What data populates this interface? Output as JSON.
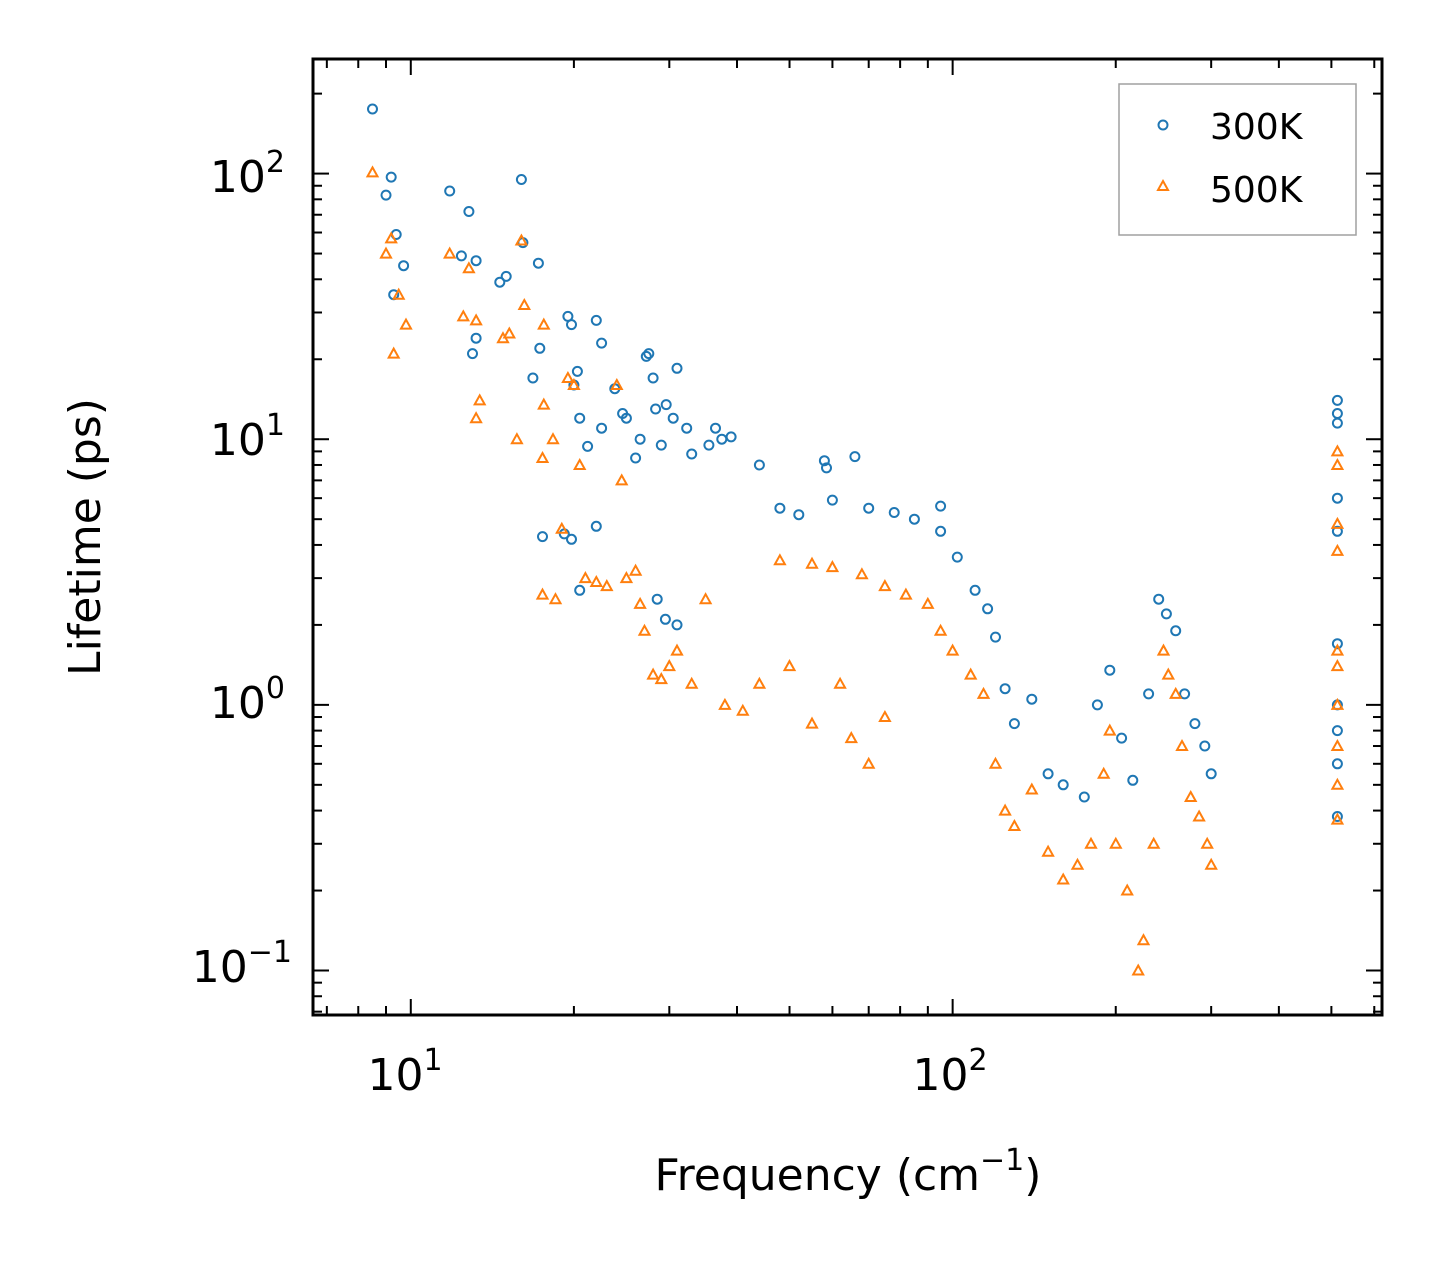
{
  "colors": {
    "series_300K": "#1f77b4",
    "series_500K": "#ff7f0e",
    "axes": "#000000",
    "legend_border": "#a0a0a0"
  },
  "chart_data": {
    "type": "scatter",
    "title": "",
    "xlabel": {
      "base": "Frequency (cm",
      "sup": "−1",
      "suffix": ")"
    },
    "ylabel": "Lifetime (ps)",
    "xscale": "log",
    "yscale": "log",
    "xlim": [
      6.6,
      620
    ],
    "ylim": [
      0.068,
      270
    ],
    "x_ticks": [
      {
        "value": 10,
        "base": "10",
        "exp": "1"
      },
      {
        "value": 100,
        "base": "10",
        "exp": "2"
      }
    ],
    "y_ticks": [
      {
        "value": 0.1,
        "base": "10",
        "exp": "−1"
      },
      {
        "value": 1,
        "base": "10",
        "exp": "0"
      },
      {
        "value": 10,
        "base": "10",
        "exp": "1"
      },
      {
        "value": 100,
        "base": "10",
        "exp": "2"
      }
    ],
    "legend_position": "top-right",
    "series": [
      {
        "name": "300K",
        "marker": "circle",
        "points": [
          [
            8.5,
            175
          ],
          [
            9.0,
            83
          ],
          [
            9.2,
            97
          ],
          [
            9.4,
            59
          ],
          [
            9.7,
            45
          ],
          [
            9.3,
            35
          ],
          [
            11.8,
            86
          ],
          [
            12.4,
            49
          ],
          [
            12.8,
            72
          ],
          [
            13.2,
            47
          ],
          [
            13.0,
            21
          ],
          [
            13.2,
            24
          ],
          [
            14.6,
            39
          ],
          [
            15.0,
            41
          ],
          [
            16.0,
            95
          ],
          [
            16.1,
            55
          ],
          [
            17.2,
            46
          ],
          [
            16.8,
            17
          ],
          [
            17.3,
            22
          ],
          [
            19.5,
            29
          ],
          [
            19.8,
            27
          ],
          [
            20.0,
            16
          ],
          [
            20.3,
            18
          ],
          [
            20.5,
            12
          ],
          [
            21.2,
            9.4
          ],
          [
            22.0,
            28
          ],
          [
            22.5,
            23
          ],
          [
            22.5,
            11
          ],
          [
            23.8,
            15.5
          ],
          [
            24.6,
            12.5
          ],
          [
            25.0,
            12
          ],
          [
            26.0,
            8.5
          ],
          [
            26.5,
            10
          ],
          [
            27.2,
            20.5
          ],
          [
            27.5,
            21
          ],
          [
            28.0,
            17
          ],
          [
            28.3,
            13
          ],
          [
            29.0,
            9.5
          ],
          [
            29.6,
            13.5
          ],
          [
            30.5,
            12
          ],
          [
            31.0,
            18.5
          ],
          [
            32.3,
            11
          ],
          [
            33.0,
            8.8
          ],
          [
            35.5,
            9.5
          ],
          [
            36.5,
            11
          ],
          [
            37.5,
            10
          ],
          [
            39.0,
            10.2
          ],
          [
            44.0,
            8
          ],
          [
            58.0,
            8.3
          ],
          [
            58.5,
            7.8
          ],
          [
            66.0,
            8.6
          ],
          [
            95.0,
            5.6
          ],
          [
            17.5,
            4.3
          ],
          [
            19.2,
            4.4
          ],
          [
            19.8,
            4.2
          ],
          [
            28.5,
            2.5
          ],
          [
            29.5,
            2.1
          ],
          [
            31.0,
            2.0
          ],
          [
            20.5,
            2.7
          ],
          [
            22.0,
            4.7
          ],
          [
            48.0,
            5.5
          ],
          [
            52.0,
            5.2
          ],
          [
            60.0,
            5.9
          ],
          [
            70.0,
            5.5
          ],
          [
            78.0,
            5.3
          ],
          [
            85.0,
            5.0
          ],
          [
            95.0,
            4.5
          ],
          [
            102,
            3.6
          ],
          [
            110,
            2.7
          ],
          [
            116,
            2.3
          ],
          [
            120,
            1.8
          ],
          [
            125,
            1.15
          ],
          [
            130,
            0.85
          ],
          [
            140,
            1.05
          ],
          [
            150,
            0.55
          ],
          [
            160,
            0.5
          ],
          [
            175,
            0.45
          ],
          [
            185,
            1.0
          ],
          [
            195,
            1.35
          ],
          [
            205,
            0.75
          ],
          [
            215,
            0.52
          ],
          [
            230,
            1.1
          ],
          [
            240,
            2.5
          ],
          [
            248,
            2.2
          ],
          [
            258,
            1.9
          ],
          [
            268,
            1.1
          ],
          [
            280,
            0.85
          ],
          [
            292,
            0.7
          ],
          [
            300,
            0.55
          ],
          [
            513,
            14
          ],
          [
            513,
            12.5
          ],
          [
            513,
            11.5
          ],
          [
            513,
            6
          ],
          [
            513,
            4.5
          ],
          [
            513,
            1.7
          ],
          [
            513,
            1.0
          ],
          [
            513,
            0.8
          ],
          [
            513,
            0.6
          ],
          [
            513,
            0.38
          ]
        ]
      },
      {
        "name": "500K",
        "marker": "triangle",
        "points": [
          [
            8.5,
            101
          ],
          [
            9.0,
            50
          ],
          [
            9.2,
            57
          ],
          [
            9.5,
            35
          ],
          [
            9.3,
            21
          ],
          [
            9.8,
            27
          ],
          [
            11.8,
            50
          ],
          [
            12.5,
            29
          ],
          [
            12.8,
            44
          ],
          [
            13.2,
            28
          ],
          [
            13.4,
            14
          ],
          [
            13.2,
            12
          ],
          [
            14.8,
            24
          ],
          [
            15.2,
            25
          ],
          [
            16.0,
            56
          ],
          [
            16.2,
            32
          ],
          [
            15.7,
            10
          ],
          [
            17.5,
            8.5
          ],
          [
            17.6,
            27
          ],
          [
            17.6,
            13.5
          ],
          [
            18.3,
            10
          ],
          [
            19.0,
            4.6
          ],
          [
            17.5,
            2.6
          ],
          [
            18.5,
            2.5
          ],
          [
            19.5,
            17
          ],
          [
            20.0,
            16
          ],
          [
            20.5,
            8
          ],
          [
            21.0,
            3
          ],
          [
            22.0,
            2.9
          ],
          [
            23.0,
            2.8
          ],
          [
            24.0,
            16
          ],
          [
            24.5,
            7
          ],
          [
            25.0,
            3.0
          ],
          [
            26.0,
            3.2
          ],
          [
            26.5,
            2.4
          ],
          [
            27.0,
            1.9
          ],
          [
            28.0,
            1.3
          ],
          [
            29.0,
            1.25
          ],
          [
            30.0,
            1.4
          ],
          [
            31.0,
            1.6
          ],
          [
            33.0,
            1.2
          ],
          [
            35.0,
            2.5
          ],
          [
            38.0,
            1.0
          ],
          [
            41.0,
            0.95
          ],
          [
            44.0,
            1.2
          ],
          [
            50.0,
            1.4
          ],
          [
            55.0,
            0.85
          ],
          [
            62.0,
            1.2
          ],
          [
            65.0,
            0.75
          ],
          [
            70.0,
            0.6
          ],
          [
            75.0,
            0.9
          ],
          [
            48.0,
            3.5
          ],
          [
            55.0,
            3.4
          ],
          [
            60.0,
            3.3
          ],
          [
            68.0,
            3.1
          ],
          [
            75.0,
            2.8
          ],
          [
            82.0,
            2.6
          ],
          [
            90.0,
            2.4
          ],
          [
            95.0,
            1.9
          ],
          [
            100,
            1.6
          ],
          [
            108,
            1.3
          ],
          [
            114,
            1.1
          ],
          [
            120,
            0.6
          ],
          [
            125,
            0.4
          ],
          [
            130,
            0.35
          ],
          [
            140,
            0.48
          ],
          [
            150,
            0.28
          ],
          [
            160,
            0.22
          ],
          [
            170,
            0.25
          ],
          [
            180,
            0.3
          ],
          [
            190,
            0.55
          ],
          [
            195,
            0.8
          ],
          [
            200,
            0.3
          ],
          [
            210,
            0.2
          ],
          [
            220,
            0.1
          ],
          [
            225,
            0.13
          ],
          [
            235,
            0.3
          ],
          [
            245,
            1.6
          ],
          [
            250,
            1.3
          ],
          [
            258,
            1.1
          ],
          [
            265,
            0.7
          ],
          [
            275,
            0.45
          ],
          [
            285,
            0.38
          ],
          [
            295,
            0.3
          ],
          [
            300,
            0.25
          ],
          [
            513,
            9
          ],
          [
            513,
            8
          ],
          [
            513,
            4.8
          ],
          [
            513,
            3.8
          ],
          [
            513,
            1.6
          ],
          [
            513,
            1.4
          ],
          [
            513,
            1.0
          ],
          [
            513,
            0.7
          ],
          [
            513,
            0.5
          ],
          [
            513,
            0.37
          ]
        ]
      }
    ]
  }
}
